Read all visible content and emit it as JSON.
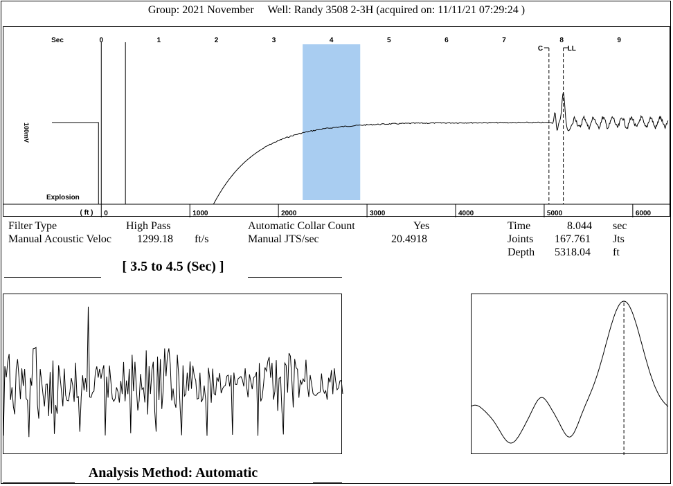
{
  "header": {
    "group_label": "Group: 2021 November",
    "well_label": "Well: Randy 3508 2-3H (acquired on: 11/11/21 07:29:24 )"
  },
  "info": {
    "filter_type_label": "Filter Type",
    "filter_type_value": "High Pass",
    "manual_velocity_label": "Manual Acoustic Veloc",
    "manual_velocity_value": "1299.18",
    "manual_velocity_unit": "ft/s",
    "auto_collar_label": "Automatic Collar Count",
    "auto_collar_value": "Yes",
    "manual_jts_label": "Manual JTS/sec",
    "manual_jts_value": "20.4918",
    "time_label": "Time",
    "time_value": "8.044",
    "time_unit": "sec",
    "joints_label": "Joints",
    "joints_value": "167.761",
    "joints_unit": "Jts",
    "depth_label": "Depth",
    "depth_value": "5318.04",
    "depth_unit": "ft"
  },
  "zoom_title": "[ 3.5  to  4.5 (Sec) ]",
  "analysis_method": "Analysis Method:   Automatic",
  "chart_data": [
    {
      "type": "line",
      "sec_axis_label": "Sec",
      "ft_axis_label": "( ft )",
      "y_label": "100mV",
      "explosion_label": "Explosion",
      "sec_ticks": [
        0,
        1,
        2,
        3,
        4,
        5,
        6,
        7,
        8,
        9
      ],
      "ft_ticks": [
        0,
        1000,
        2000,
        3000,
        4000,
        5000,
        6000
      ],
      "xlim_sec": [
        -1.7,
        9.9
      ],
      "highlight_sec": [
        3.5,
        4.5
      ],
      "highlight_color": "#a9cdf1",
      "markers": [
        {
          "label": "C",
          "sec": 7.78
        },
        {
          "label": "LL",
          "sec": 8.03
        }
      ]
    },
    {
      "type": "line",
      "title": "[ 3.5  to  4.5 (Sec) ]",
      "xlim_sec": [
        3.5,
        4.5
      ]
    },
    {
      "type": "line",
      "peak_marker": true
    }
  ]
}
